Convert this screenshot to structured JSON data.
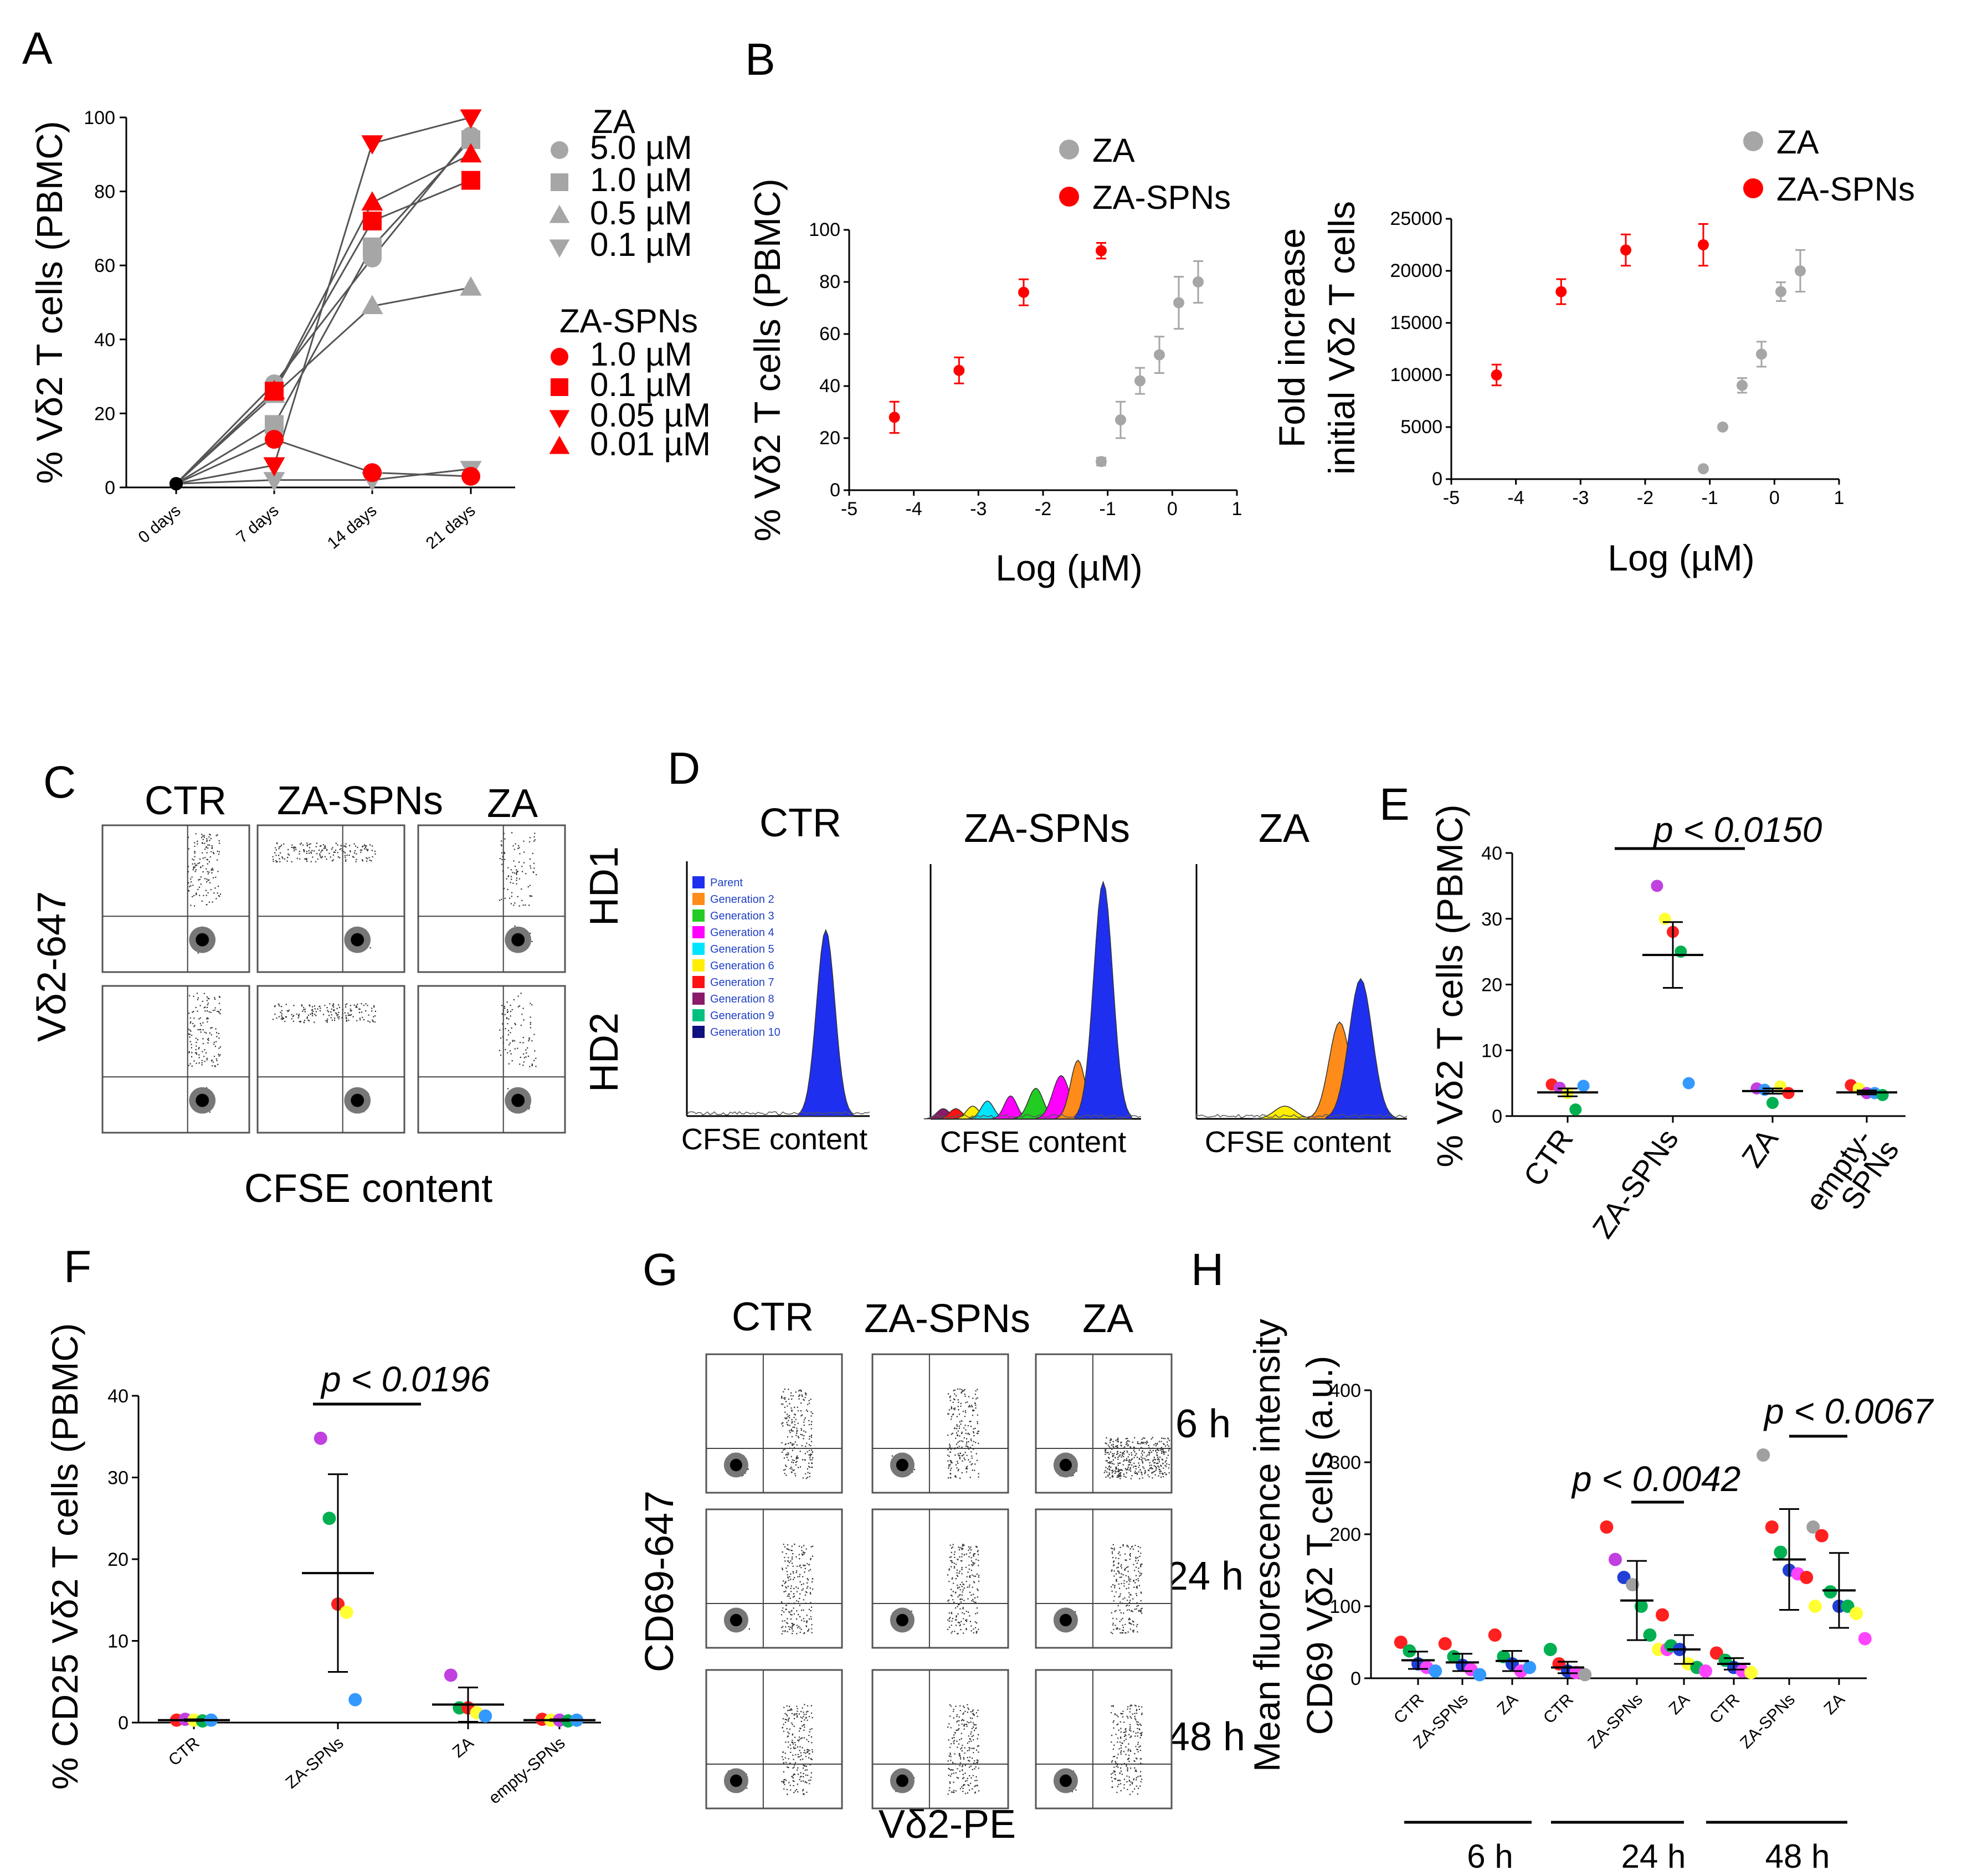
{
  "panels": {
    "A": "A",
    "B": "B",
    "C": "C",
    "D": "D",
    "E": "E",
    "F": "F",
    "G": "G",
    "H": "H"
  },
  "colors": {
    "za": "#a6a6a6",
    "zaspn": "#ff0000",
    "line": "#555555",
    "dot_red": "#ff2020",
    "dot_purple": "#c040e0",
    "dot_yellow": "#ffff33",
    "dot_green": "#00b050",
    "dot_blue": "#3399ff",
    "dot_darkblue": "#1f3fd6",
    "dot_gray": "#a0a0a0",
    "dot_magenta": "#ff44ff"
  },
  "chart_data": [
    {
      "id": "A",
      "type": "line",
      "ylabel": "% Vδ2 T cells (PBMC)",
      "ylim": [
        0,
        100
      ],
      "yticks": [
        "0",
        "20",
        "40",
        "60",
        "80",
        "100"
      ],
      "categories": [
        "0 days",
        "7 days",
        "14 days",
        "21 days"
      ],
      "legend_title_za": "ZA",
      "legend_title_spn": "ZA-SPNs",
      "series": [
        {
          "name": "ZA 5.0 µM",
          "group": "ZA",
          "label": "5.0 µM",
          "marker": "circle",
          "values": [
            1,
            28,
            62,
            95
          ]
        },
        {
          "name": "ZA 1.0 µM",
          "group": "ZA",
          "label": "1.0 µM",
          "marker": "square",
          "values": [
            1,
            17,
            65,
            94
          ]
        },
        {
          "name": "ZA 0.5 µM",
          "group": "ZA",
          "label": "0.5 µM",
          "marker": "triangle-up",
          "values": [
            1,
            25,
            49,
            54
          ]
        },
        {
          "name": "ZA 0.1 µM",
          "group": "ZA",
          "label": "0.1 µM",
          "marker": "triangle-down",
          "values": [
            1,
            2,
            2,
            5
          ]
        },
        {
          "name": "ZA-SPNs 1.0 µM",
          "group": "ZA-SPNs",
          "label": "1.0 µM",
          "marker": "circle",
          "values": [
            1,
            13,
            4,
            3
          ]
        },
        {
          "name": "ZA-SPNs 0.1 µM",
          "group": "ZA-SPNs",
          "label": "0.1 µM",
          "marker": "square",
          "values": [
            1,
            26,
            72,
            83
          ]
        },
        {
          "name": "ZA-SPNs 0.05 µM",
          "group": "ZA-SPNs",
          "label": "0.05 µM",
          "marker": "triangle-down",
          "values": [
            1,
            6,
            93,
            100
          ]
        },
        {
          "name": "ZA-SPNs 0.01 µM",
          "group": "ZA-SPNs",
          "label": "0.01 µM",
          "marker": "triangle-up",
          "values": [
            1,
            26,
            77,
            90
          ]
        }
      ]
    },
    {
      "id": "B1",
      "type": "scatter",
      "xlabel": "Log (µM)",
      "ylabel": "% Vδ2 T cells (PBMC)",
      "xlim": [
        -5,
        1
      ],
      "ylim": [
        0,
        100
      ],
      "xticks": [
        "-5",
        "-4",
        "-3",
        "-2",
        "-1",
        "0",
        "1"
      ],
      "yticks": [
        "0",
        "20",
        "40",
        "60",
        "80",
        "100"
      ],
      "legend": [
        "ZA",
        "ZA-SPNs"
      ],
      "series": [
        {
          "name": "ZA",
          "x": [
            -1.1,
            -0.8,
            -0.5,
            -0.2,
            0.1,
            0.4
          ],
          "y": [
            11,
            27,
            42,
            52,
            72,
            80
          ],
          "err": [
            1.5,
            7,
            5,
            7,
            10,
            8
          ]
        },
        {
          "name": "ZA-SPNs",
          "x": [
            -4.3,
            -3.3,
            -2.3,
            -1.1
          ],
          "y": [
            28,
            46,
            76,
            92
          ],
          "err": [
            6,
            5,
            5,
            3
          ]
        }
      ]
    },
    {
      "id": "B2",
      "type": "scatter",
      "xlabel": "Log (µM)",
      "ylabel": "Fold increase initial Vδ2 T cells",
      "ylabel_line1": "Fold increase",
      "ylabel_line2": "initial Vδ2 T cells",
      "xlim": [
        -5,
        1
      ],
      "ylim": [
        0,
        25000
      ],
      "xticks": [
        "-5",
        "-4",
        "-3",
        "-2",
        "-1",
        "0",
        "1"
      ],
      "yticks": [
        "0",
        "5000",
        "10000",
        "15000",
        "20000",
        "25000"
      ],
      "legend": [
        "ZA",
        "ZA-SPNs"
      ],
      "series": [
        {
          "name": "ZA",
          "x": [
            -1.1,
            -0.8,
            -0.5,
            -0.2,
            0.1,
            0.4
          ],
          "y": [
            1000,
            5000,
            9000,
            12000,
            18000,
            20000
          ],
          "err": [
            0,
            0,
            700,
            1200,
            900,
            2000
          ]
        },
        {
          "name": "ZA-SPNs",
          "x": [
            -4.3,
            -3.3,
            -2.3,
            -1.1
          ],
          "y": [
            10000,
            18000,
            22000,
            22500
          ],
          "err": [
            1000,
            1200,
            1500,
            2000
          ]
        }
      ]
    },
    {
      "id": "E",
      "type": "scatter",
      "ylabel": "% Vδ2 T cells (PBMC)",
      "ylim": [
        0,
        40
      ],
      "yticks": [
        "0",
        "10",
        "20",
        "30",
        "40"
      ],
      "categories": [
        "CTR",
        "ZA-SPNs",
        "ZA",
        "empty-SPNs"
      ],
      "category_line1": [
        "CTR",
        "ZA-SPNs",
        "ZA",
        "empty-"
      ],
      "category_line2": [
        "",
        "",
        "",
        "SPNs"
      ],
      "pvalue": "p < 0.0150",
      "groups": [
        {
          "name": "CTR",
          "mean": 3.6,
          "sd": 0.6,
          "points": [
            {
              "v": 4.8,
              "c": "red"
            },
            {
              "v": 4.3,
              "c": "purple"
            },
            {
              "v": 3.5,
              "c": "yellow"
            },
            {
              "v": 1.0,
              "c": "green"
            },
            {
              "v": 4.6,
              "c": "blue"
            }
          ]
        },
        {
          "name": "ZA-SPNs",
          "mean": 24.5,
          "sd": 5,
          "points": [
            {
              "v": 35,
              "c": "purple"
            },
            {
              "v": 30,
              "c": "yellow"
            },
            {
              "v": 28,
              "c": "red"
            },
            {
              "v": 25,
              "c": "green"
            },
            {
              "v": 5,
              "c": "blue"
            }
          ]
        },
        {
          "name": "ZA",
          "mean": 3.8,
          "sd": 0.4,
          "points": [
            {
              "v": 4.2,
              "c": "purple"
            },
            {
              "v": 4.0,
              "c": "blue"
            },
            {
              "v": 2,
              "c": "green"
            },
            {
              "v": 4.5,
              "c": "yellow"
            },
            {
              "v": 3.5,
              "c": "red"
            }
          ]
        },
        {
          "name": "empty-SPNs",
          "mean": 3.6,
          "sd": 0.3,
          "points": [
            {
              "v": 4.7,
              "c": "red"
            },
            {
              "v": 4.2,
              "c": "yellow"
            },
            {
              "v": 3.5,
              "c": "purple"
            },
            {
              "v": 3.5,
              "c": "blue"
            },
            {
              "v": 3.2,
              "c": "green"
            }
          ]
        }
      ]
    },
    {
      "id": "F",
      "type": "scatter",
      "ylabel": "% CD25 Vδ2 T cells (PBMC)",
      "ylim": [
        0,
        40
      ],
      "yticks": [
        "0",
        "10",
        "20",
        "30",
        "40"
      ],
      "categories": [
        "CTR",
        "ZA-SPNs",
        "ZA",
        "empty-SPNs"
      ],
      "pvalue": "p < 0.0196",
      "groups": [
        {
          "name": "CTR",
          "mean": 0.3,
          "sd": 0.1,
          "points": [
            {
              "v": 0.3,
              "c": "red"
            },
            {
              "v": 0.4,
              "c": "purple"
            },
            {
              "v": 0.3,
              "c": "yellow"
            },
            {
              "v": 0.2,
              "c": "green"
            },
            {
              "v": 0.3,
              "c": "blue"
            }
          ]
        },
        {
          "name": "ZA-SPNs",
          "mean": 18.3,
          "sd": 12.1,
          "points": [
            {
              "v": 34.8,
              "c": "purple"
            },
            {
              "v": 25,
              "c": "green"
            },
            {
              "v": 14.5,
              "c": "red"
            },
            {
              "v": 13.5,
              "c": "yellow"
            },
            {
              "v": 2.8,
              "c": "blue"
            }
          ]
        },
        {
          "name": "ZA",
          "mean": 2.2,
          "sd": 2.1,
          "points": [
            {
              "v": 5.8,
              "c": "purple"
            },
            {
              "v": 1.8,
              "c": "green"
            },
            {
              "v": 1.8,
              "c": "red"
            },
            {
              "v": 1.2,
              "c": "yellow"
            },
            {
              "v": 0.8,
              "c": "blue"
            }
          ]
        },
        {
          "name": "empty-SPNs",
          "mean": 0.3,
          "sd": 0.1,
          "points": [
            {
              "v": 0.4,
              "c": "red"
            },
            {
              "v": 0.3,
              "c": "yellow"
            },
            {
              "v": 0.3,
              "c": "purple"
            },
            {
              "v": 0.2,
              "c": "green"
            },
            {
              "v": 0.3,
              "c": "blue"
            }
          ]
        }
      ]
    },
    {
      "id": "H",
      "type": "scatter",
      "ylabel": "Mean fluorescence intensity CD69 Vδ2 T cells (a.u.)",
      "ylabel_line1": "Mean fluorescence intensity",
      "ylabel_line2": "CD69 Vδ2 T cells (a.u.)",
      "ylim": [
        0,
        400
      ],
      "yticks": [
        "0",
        "100",
        "200",
        "300",
        "400"
      ],
      "categories": [
        "CTR",
        "ZA-SPNs",
        "ZA",
        "CTR",
        "ZA-SPNs",
        "ZA",
        "CTR",
        "ZA-SPNs",
        "ZA"
      ],
      "time_labels": [
        "6 h",
        "24 h",
        "48 h"
      ],
      "pvalues": [
        "p < 0.0042",
        "p < 0.0067"
      ],
      "groups": [
        {
          "name": "CTR 6 h",
          "mean": 25,
          "sd": 12,
          "points": [
            {
              "v": 50,
              "c": "red"
            },
            {
              "v": 38,
              "c": "green"
            },
            {
              "v": 20,
              "c": "darkblue"
            },
            {
              "v": 15,
              "c": "magenta"
            },
            {
              "v": 10,
              "c": "blue"
            }
          ]
        },
        {
          "name": "ZA-SPNs 6 h",
          "mean": 22,
          "sd": 12,
          "points": [
            {
              "v": 48,
              "c": "red"
            },
            {
              "v": 30,
              "c": "green"
            },
            {
              "v": 18,
              "c": "darkblue"
            },
            {
              "v": 12,
              "c": "magenta"
            },
            {
              "v": 5,
              "c": "blue"
            }
          ]
        },
        {
          "name": "ZA 6 h",
          "mean": 24,
          "sd": 14,
          "points": [
            {
              "v": 60,
              "c": "red"
            },
            {
              "v": 30,
              "c": "green"
            },
            {
              "v": 20,
              "c": "darkblue"
            },
            {
              "v": 10,
              "c": "magenta"
            },
            {
              "v": 15,
              "c": "blue"
            }
          ]
        },
        {
          "name": "CTR 24 h",
          "mean": 15,
          "sd": 8,
          "points": [
            {
              "v": 40,
              "c": "green"
            },
            {
              "v": 20,
              "c": "red"
            },
            {
              "v": 10,
              "c": "darkblue"
            },
            {
              "v": 8,
              "c": "magenta"
            },
            {
              "v": 5,
              "c": "gray"
            }
          ]
        },
        {
          "name": "ZA-SPNs 24 h",
          "mean": 108,
          "sd": 55,
          "points": [
            {
              "v": 210,
              "c": "red"
            },
            {
              "v": 165,
              "c": "purple"
            },
            {
              "v": 140,
              "c": "darkblue"
            },
            {
              "v": 130,
              "c": "gray"
            },
            {
              "v": 100,
              "c": "green"
            },
            {
              "v": 60,
              "c": "green"
            },
            {
              "v": 40,
              "c": "yellow"
            },
            {
              "v": 40,
              "c": "magenta"
            }
          ]
        },
        {
          "name": "ZA 24 h",
          "mean": 40,
          "sd": 20,
          "points": [
            {
              "v": 88,
              "c": "red"
            },
            {
              "v": 45,
              "c": "green"
            },
            {
              "v": 40,
              "c": "darkblue"
            },
            {
              "v": 20,
              "c": "yellow"
            },
            {
              "v": 15,
              "c": "green"
            },
            {
              "v": 10,
              "c": "magenta"
            }
          ]
        },
        {
          "name": "CTR 48 h",
          "mean": 20,
          "sd": 8,
          "points": [
            {
              "v": 35,
              "c": "red"
            },
            {
              "v": 25,
              "c": "green"
            },
            {
              "v": 15,
              "c": "darkblue"
            },
            {
              "v": 10,
              "c": "magenta"
            },
            {
              "v": 8,
              "c": "yellow"
            }
          ]
        },
        {
          "name": "ZA-SPNs 48 h",
          "mean": 165,
          "sd": 70,
          "points": [
            {
              "v": 310,
              "c": "gray"
            },
            {
              "v": 210,
              "c": "red"
            },
            {
              "v": 175,
              "c": "green"
            },
            {
              "v": 150,
              "c": "darkblue"
            },
            {
              "v": 145,
              "c": "magenta"
            },
            {
              "v": 140,
              "c": "red"
            },
            {
              "v": 100,
              "c": "yellow"
            }
          ]
        },
        {
          "name": "ZA 48 h",
          "mean": 122,
          "sd": 52,
          "points": [
            {
              "v": 210,
              "c": "gray"
            },
            {
              "v": 198,
              "c": "red"
            },
            {
              "v": 120,
              "c": "green"
            },
            {
              "v": 100,
              "c": "darkblue"
            },
            {
              "v": 100,
              "c": "green"
            },
            {
              "v": 90,
              "c": "yellow"
            },
            {
              "v": 55,
              "c": "magenta"
            }
          ]
        }
      ]
    }
  ],
  "panelC": {
    "cols": [
      "CTR",
      "ZA-SPNs",
      "ZA"
    ],
    "rows": [
      "HD1",
      "HD2"
    ],
    "ylabel": "Vδ2-647",
    "xlabel": "CFSE content"
  },
  "panelD": {
    "cols": [
      "CTR",
      "ZA-SPNs",
      "ZA"
    ],
    "xlabel": "CFSE content",
    "legend": [
      "Parent",
      "Generation 2",
      "Generation 3",
      "Generation 4",
      "Generation 5",
      "Generation 6",
      "Generation 7",
      "Generation 8",
      "Generation 9",
      "Generation 10"
    ],
    "legend_colors": [
      "#1f2ff0",
      "#ff8c1a",
      "#22cc22",
      "#ff00ff",
      "#00e5ff",
      "#ffee00",
      "#ff1111",
      "#8b1a6b",
      "#00c080",
      "#101080"
    ]
  },
  "panelG": {
    "cols": [
      "CTR",
      "ZA-SPNs",
      "ZA"
    ],
    "rows": [
      "6 h",
      "24 h",
      "48 h"
    ],
    "ylabel": "CD69-647",
    "xlabel": "Vδ2-PE"
  }
}
